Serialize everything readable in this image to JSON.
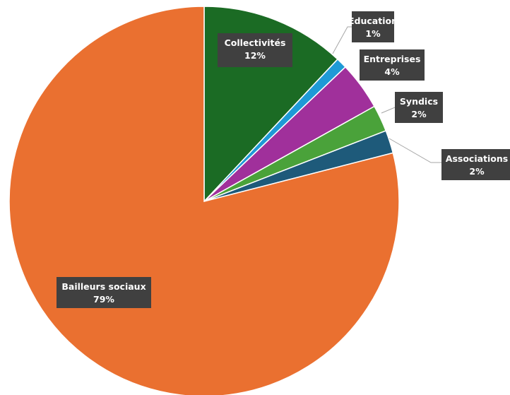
{
  "chart_data": {
    "type": "pie",
    "title": "",
    "slices": [
      {
        "label": "Collectivités",
        "pct_label": "12%",
        "value": 12.0,
        "color": "#1b6b24"
      },
      {
        "label": "Education",
        "pct_label": "1%",
        "value": 0.9,
        "color": "#1e9ad6"
      },
      {
        "label": "Entreprises",
        "pct_label": "4%",
        "value": 4.0,
        "color": "#a0309b"
      },
      {
        "label": "Syndics",
        "pct_label": "2%",
        "value": 2.2,
        "color": "#4aa23a"
      },
      {
        "label": "Associations",
        "pct_label": "2%",
        "value": 1.9,
        "color": "#1e5a7a"
      },
      {
        "label": "Bailleurs sociaux",
        "pct_label": "79%",
        "value": 79.0,
        "color": "#ea7030"
      }
    ],
    "start_angle_deg": 0,
    "direction": "clockwise",
    "legend": "none"
  }
}
